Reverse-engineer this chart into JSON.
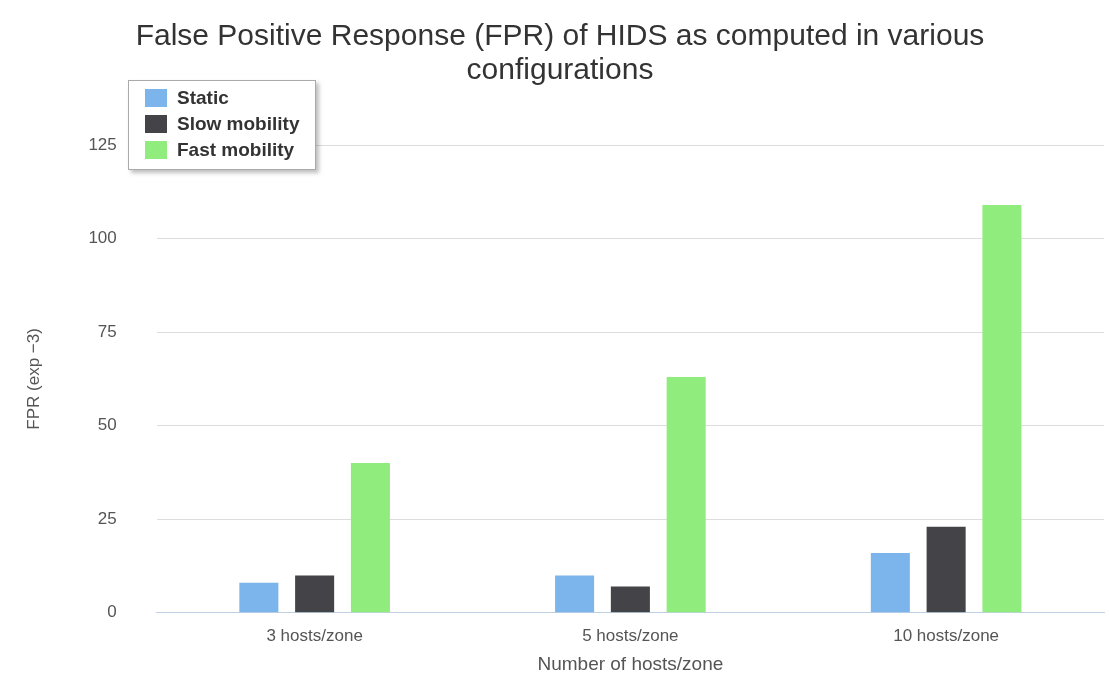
{
  "chart_data": {
    "type": "bar",
    "title": "False Positive Response (FPR) of HIDS as computed in various configurations",
    "xlabel": "Number of hosts/zone",
    "ylabel": "FPR (exp −3)",
    "categories": [
      "3 hosts/zone",
      "5 hosts/zone",
      "10 hosts/zone"
    ],
    "series": [
      {
        "name": "Static",
        "color": "#7cb5ec",
        "values": [
          8,
          10,
          16
        ]
      },
      {
        "name": "Slow mobility",
        "color": "#434348",
        "values": [
          10,
          7,
          23
        ]
      },
      {
        "name": "Fast mobility",
        "color": "#90ed7d",
        "values": [
          40,
          63,
          109
        ]
      }
    ],
    "ylim": [
      0,
      125
    ],
    "yticks": [
      0,
      25,
      50,
      75,
      100,
      125
    ],
    "grid": "y",
    "legend": "top left"
  }
}
